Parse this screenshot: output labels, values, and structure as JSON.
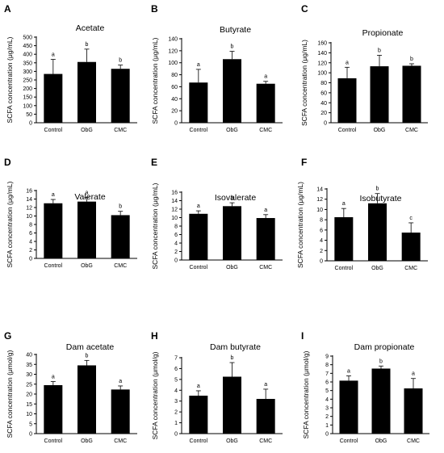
{
  "figure": {
    "chart_data": [
      {
        "letter": "A",
        "type": "bar",
        "title": "Acetate",
        "ylabel": "SCFA concentration (μg/mL)",
        "categories": [
          "Control",
          "ObG",
          "CMC"
        ],
        "values": [
          285,
          355,
          315
        ],
        "errors": [
          85,
          75,
          22
        ],
        "significance": [
          "a",
          "b",
          "b"
        ],
        "ylim": [
          0,
          500
        ],
        "yticks": [
          0,
          50,
          100,
          150,
          200,
          250,
          300,
          350,
          400,
          450,
          500
        ],
        "grid": false,
        "color": "#000000"
      },
      {
        "letter": "B",
        "type": "bar",
        "title": "Butyrate",
        "ylabel": "SCFA concentration (μg/mL)",
        "categories": [
          "Control",
          "ObG",
          "CMC"
        ],
        "values": [
          67,
          106,
          65
        ],
        "errors": [
          22,
          13,
          4
        ],
        "significance": [
          "a",
          "b",
          "a"
        ],
        "ylim": [
          0,
          140
        ],
        "yticks": [
          0,
          20,
          40,
          60,
          80,
          100,
          120,
          140
        ],
        "grid": false,
        "color": "#000000"
      },
      {
        "letter": "C",
        "type": "bar",
        "title": "Propionate",
        "ylabel": "SCFA concentration (μg/mL)",
        "categories": [
          "Control",
          "ObG",
          "CMC"
        ],
        "values": [
          89,
          113,
          114
        ],
        "errors": [
          22,
          22,
          4
        ],
        "significance": [
          "a",
          "b",
          "b"
        ],
        "ylim": [
          0,
          160
        ],
        "yticks": [
          0,
          20,
          40,
          60,
          80,
          100,
          120,
          140,
          160
        ],
        "grid": false,
        "color": "#000000"
      },
      {
        "letter": "D",
        "type": "bar",
        "title": "Valerate",
        "ylabel": "SCFA concentration (μg/mL)",
        "categories": [
          "Control",
          "ObG",
          "CMC"
        ],
        "values": [
          13.0,
          13.4,
          10.2
        ],
        "errors": [
          0.9,
          1.0,
          0.9
        ],
        "significance": [
          "a",
          "a",
          "b"
        ],
        "ylim": [
          0,
          16
        ],
        "yticks": [
          0,
          2,
          4,
          6,
          8,
          10,
          12,
          14,
          16
        ],
        "grid": false,
        "color": "#000000"
      },
      {
        "letter": "E",
        "type": "bar",
        "title": "Isovalerate",
        "ylabel": "SCFA concentration (μg/mL)",
        "categories": [
          "Control",
          "ObG",
          "CMC"
        ],
        "values": [
          10.9,
          12.7,
          9.9
        ],
        "errors": [
          0.7,
          0.8,
          0.8
        ],
        "significance": [
          "a",
          "b",
          "a"
        ],
        "ylim": [
          0,
          16
        ],
        "yticks": [
          0,
          2,
          4,
          6,
          8,
          10,
          12,
          14,
          16
        ],
        "grid": false,
        "color": "#000000"
      },
      {
        "letter": "F",
        "type": "bar",
        "title": "Isobutyrate",
        "ylabel": "SCFA concentration (μg/mL)",
        "categories": [
          "Control",
          "ObG",
          "CMC"
        ],
        "values": [
          8.5,
          11.2,
          5.5
        ],
        "errors": [
          1.7,
          1.9,
          1.9
        ],
        "significance": [
          "a",
          "b",
          "c"
        ],
        "ylim": [
          0,
          14
        ],
        "yticks": [
          0,
          2,
          4,
          6,
          8,
          10,
          12,
          14
        ],
        "grid": false,
        "color": "#000000"
      },
      {
        "letter": "G",
        "type": "bar",
        "title": "Dam acetate",
        "ylabel": "SCFA concentration (μmol/g)",
        "categories": [
          "Control",
          "ObG",
          "CMC"
        ],
        "values": [
          24.5,
          34.5,
          22.3
        ],
        "errors": [
          1.8,
          2.5,
          1.8
        ],
        "significance": [
          "a",
          "b",
          "a"
        ],
        "ylim": [
          0,
          40
        ],
        "yticks": [
          0,
          5,
          10,
          15,
          20,
          25,
          30,
          35,
          40
        ],
        "grid": false,
        "color": "#000000"
      },
      {
        "letter": "H",
        "type": "bar",
        "title": "Dam butyrate",
        "ylabel": "SCFA concentration (μmol/g)",
        "categories": [
          "Control",
          "ObG",
          "CMC"
        ],
        "values": [
          3.5,
          5.25,
          3.2
        ],
        "errors": [
          0.45,
          1.3,
          0.9
        ],
        "significance": [
          "a",
          "b",
          "a"
        ],
        "ylim": [
          0,
          7
        ],
        "yticks": [
          0,
          1,
          2,
          3,
          4,
          5,
          6,
          7
        ],
        "grid": false,
        "color": "#000000"
      },
      {
        "letter": "I",
        "type": "bar",
        "title": "Dam propionate",
        "ylabel": "SCFA concentration (μmol/g)",
        "categories": [
          "Control",
          "ObG",
          "CMC"
        ],
        "values": [
          6.15,
          7.55,
          5.25
        ],
        "errors": [
          0.55,
          0.3,
          1.15
        ],
        "significance": [
          "a",
          "b",
          "a"
        ],
        "ylim": [
          0,
          9
        ],
        "yticks": [
          0,
          1,
          2,
          3,
          4,
          5,
          6,
          7,
          8,
          9
        ],
        "grid": false,
        "color": "#000000"
      }
    ]
  }
}
